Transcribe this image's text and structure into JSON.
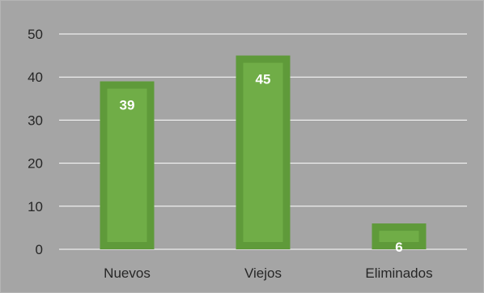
{
  "chart_data": {
    "type": "bar",
    "categories": [
      "Nuevos",
      "Viejos",
      "Eliminados"
    ],
    "values": [
      39,
      45,
      6
    ],
    "data_labels": [
      "39",
      "45",
      "6"
    ],
    "title": "",
    "xlabel": "",
    "ylabel": "",
    "ylim": [
      0,
      50
    ],
    "yticks": [
      0,
      10,
      20,
      30,
      40,
      50
    ],
    "ytick_labels": [
      "0",
      "10",
      "20",
      "30",
      "40",
      "50"
    ],
    "grid": true,
    "legend": "none",
    "colors": {
      "background": "#a5a5a5",
      "bar_fill": "#70ad47",
      "bar_edge": "#5f9a3a",
      "gridline": "#ffffff",
      "tick_label": "#262626",
      "data_label": "#ffffff"
    }
  }
}
